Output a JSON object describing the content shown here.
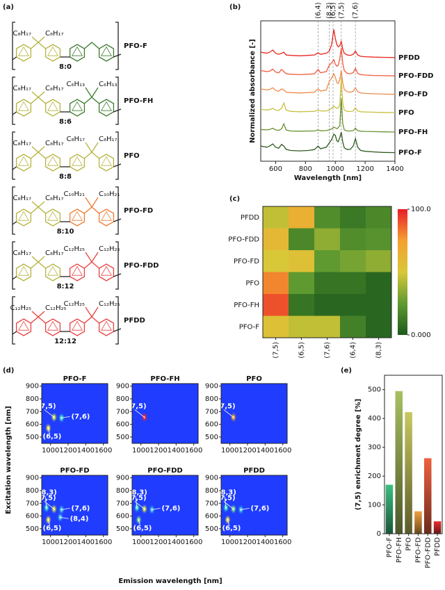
{
  "panel_labels": [
    "(a)",
    "(b)",
    "(c)",
    "(d)",
    "(e)"
  ],
  "structures": [
    {
      "left_chain": "C₈H₁₇",
      "right_chain": null,
      "name": "PFO-F",
      "ratio": "8:0",
      "left_color": "#b5b23c",
      "right_color": "#3d7a2e"
    },
    {
      "left_chain": "C₈H₁₇",
      "right_chain": "C₆H₁₃",
      "name": "PFO-FH",
      "ratio": "8:6",
      "left_color": "#b5b23c",
      "right_color": "#3d7a2e"
    },
    {
      "left_chain": "C₈H₁₇",
      "right_chain": "C₈H₁₇",
      "name": "PFO",
      "ratio": "8:8",
      "left_color": "#b5b23c",
      "right_color": "#b5b23c"
    },
    {
      "left_chain": "C₈H₁₇",
      "right_chain": "C₁₀H₂₁",
      "name": "PFO-FD",
      "ratio": "8:10",
      "left_color": "#b5b23c",
      "right_color": "#f07a30"
    },
    {
      "left_chain": "C₈H₁₇",
      "right_chain": "C₁₂H₂₅",
      "name": "PFO-FDD",
      "ratio": "8:12",
      "left_color": "#b5b23c",
      "right_color": "#e84040"
    },
    {
      "left_chain": "C₁₂H₂₅",
      "right_chain": "C₁₂H₂₅",
      "name": "PFDD",
      "ratio": "12:12",
      "left_color": "#e84040",
      "right_color": "#e84040"
    }
  ],
  "chart_data": [
    {
      "type": "line",
      "x_label": "Wavelength [nm]",
      "y_label": "Normalized absorbance [-]",
      "x": [
        500,
        540,
        560,
        580,
        600,
        620,
        640,
        655,
        670,
        700,
        760,
        820,
        860,
        885,
        900,
        940,
        960,
        975,
        990,
        1000,
        1010,
        1020,
        1030,
        1040,
        1050,
        1060,
        1080,
        1100,
        1120,
        1135,
        1150,
        1170,
        1200,
        1260,
        1320,
        1400
      ],
      "series": [
        {
          "name": "PFDD",
          "color": "#e8241c",
          "values": [
            5.55,
            5.5,
            5.55,
            5.65,
            5.5,
            5.45,
            5.5,
            5.55,
            5.42,
            5.4,
            5.38,
            5.4,
            5.42,
            5.52,
            5.45,
            5.5,
            5.6,
            5.9,
            6.6,
            6.2,
            5.9,
            5.8,
            5.85,
            6.05,
            5.7,
            5.5,
            5.42,
            5.4,
            5.45,
            5.6,
            5.42,
            5.36,
            5.34,
            5.32,
            5.31,
            5.3
          ]
        },
        {
          "name": "PFO-FDD",
          "color": "#f05a3a",
          "values": [
            4.7,
            4.65,
            4.67,
            4.77,
            4.63,
            4.59,
            4.75,
            4.65,
            4.55,
            4.53,
            4.51,
            4.53,
            4.55,
            4.75,
            4.6,
            4.65,
            4.95,
            5.05,
            5.2,
            5.0,
            4.9,
            4.95,
            5.25,
            5.75,
            5.05,
            4.7,
            4.57,
            4.55,
            4.6,
            4.8,
            4.57,
            4.51,
            4.49,
            4.47,
            4.46,
            4.45
          ]
        },
        {
          "name": "PFO-FD",
          "color": "#f08a4a",
          "values": [
            3.85,
            3.8,
            3.82,
            3.9,
            3.78,
            3.74,
            3.85,
            3.8,
            3.7,
            3.68,
            3.66,
            3.68,
            3.7,
            3.85,
            3.75,
            3.8,
            4.2,
            4.35,
            4.55,
            4.4,
            4.15,
            4.1,
            4.3,
            4.7,
            4.15,
            3.82,
            3.72,
            3.7,
            3.74,
            3.9,
            3.72,
            3.66,
            3.64,
            3.62,
            3.61,
            3.6
          ]
        },
        {
          "name": "PFO",
          "color": "#c8c040",
          "values": [
            2.9,
            2.87,
            2.89,
            2.95,
            2.87,
            2.85,
            2.95,
            3.2,
            2.87,
            2.81,
            2.79,
            2.8,
            2.81,
            2.87,
            2.83,
            2.83,
            2.87,
            2.95,
            3.05,
            3.0,
            2.95,
            2.97,
            3.1,
            4.35,
            3.2,
            2.87,
            2.81,
            2.8,
            2.83,
            2.97,
            2.83,
            2.79,
            2.78,
            2.77,
            2.76,
            2.75
          ]
        },
        {
          "name": "PFO-FH",
          "color": "#6a9030",
          "values": [
            1.97,
            1.95,
            1.97,
            2.03,
            1.95,
            1.93,
            2.0,
            2.23,
            1.95,
            1.9,
            1.89,
            1.9,
            1.9,
            1.95,
            1.91,
            1.92,
            1.95,
            2.0,
            2.07,
            2.05,
            2.01,
            2.05,
            2.15,
            3.4,
            2.25,
            1.95,
            1.9,
            1.9,
            1.92,
            2.03,
            1.92,
            1.89,
            1.88,
            1.87,
            1.86,
            1.85
          ]
        },
        {
          "name": "PFO-F",
          "color": "#2e5a20",
          "values": [
            1.2,
            1.15,
            1.2,
            1.3,
            1.15,
            1.1,
            1.28,
            1.2,
            1.05,
            1.0,
            0.98,
            1.0,
            1.04,
            1.2,
            1.08,
            1.15,
            1.35,
            1.5,
            1.75,
            1.7,
            1.45,
            1.4,
            1.6,
            1.85,
            1.4,
            1.12,
            1.04,
            1.05,
            1.2,
            1.55,
            1.15,
            1.0,
            0.96,
            0.93,
            0.91,
            0.9
          ]
        }
      ],
      "annotations": [
        {
          "label": "(6,4)",
          "x": 885
        },
        {
          "label": "(8,3)",
          "x": 960
        },
        {
          "label": "(6,5)",
          "x": 985
        },
        {
          "label": "(7,5)",
          "x": 1040
        },
        {
          "label": "(7,6)",
          "x": 1135
        }
      ],
      "xlim": [
        500,
        1400
      ],
      "xticks": [
        600,
        800,
        1000,
        1200,
        1400
      ],
      "ylim": [
        0.5,
        7
      ]
    },
    {
      "type": "heatmap",
      "rows": [
        "PFDD",
        "PFO-FDD",
        "PFO-FD",
        "PFO",
        "PFO-FH",
        "PFO-F"
      ],
      "columns": [
        "(7,5)",
        "(6,5)",
        "(7,6)",
        "(6,4)",
        "(8,3)"
      ],
      "values": [
        [
          45,
          65,
          20,
          12,
          18
        ],
        [
          60,
          18,
          35,
          20,
          22
        ],
        [
          50,
          55,
          25,
          30,
          35
        ],
        [
          80,
          25,
          10,
          10,
          5
        ],
        [
          90,
          10,
          5,
          5,
          5
        ],
        [
          55,
          45,
          45,
          15,
          5
        ]
      ],
      "zlim": [
        0,
        100
      ],
      "zticks": [
        {
          "value": 100,
          "label": "100.0"
        },
        {
          "value": 0,
          "label": "0.000"
        }
      ],
      "colorscale": [
        "#1c5a1c",
        "#5f9a30",
        "#d8c838",
        "#f5a030",
        "#e81c28"
      ]
    },
    {
      "type": "ple-map",
      "x_label": "Emission wavelength [nm]",
      "y_label": "Excitation wavelength [nm]",
      "background": "#1f3cff",
      "xlim": [
        900,
        1650
      ],
      "xticks": [
        1000,
        1200,
        1400,
        1600
      ],
      "ylim": [
        450,
        920
      ],
      "yticks": [
        500,
        600,
        700,
        800,
        900
      ],
      "panels": [
        {
          "title": "PFO-F",
          "peaks": [
            {
              "label": "(7,5)",
              "x": 1040,
              "y": 655,
              "color": "#c8e040"
            },
            {
              "label": "(7,6)",
              "x": 1125,
              "y": 650,
              "color": "#40e0c0"
            },
            {
              "label": "(6,5)",
              "x": 975,
              "y": 570,
              "color": "#e8e040"
            }
          ]
        },
        {
          "title": "PFO-FH",
          "peaks": [
            {
              "label": "(7,5)",
              "x": 1040,
              "y": 655,
              "color": "#ff2020"
            }
          ]
        },
        {
          "title": "PFO",
          "peaks": [
            {
              "label": "(7,5)",
              "x": 1040,
              "y": 655,
              "color": "#f0a020"
            }
          ]
        },
        {
          "title": "PFO-FD",
          "peaks": [
            {
              "label": "(8,3)",
              "x": 955,
              "y": 665,
              "color": "#40e0c0"
            },
            {
              "label": "(7,5)",
              "x": 1040,
              "y": 655,
              "color": "#c8e040"
            },
            {
              "label": "(7,6)",
              "x": 1125,
              "y": 650,
              "color": "#40c0e0"
            },
            {
              "label": "(8,4)",
              "x": 1110,
              "y": 590,
              "color": "#40c0e0"
            },
            {
              "label": "(6,5)",
              "x": 975,
              "y": 570,
              "color": "#e8e040"
            }
          ]
        },
        {
          "title": "PFO-FDD",
          "peaks": [
            {
              "label": "(8,3)",
              "x": 955,
              "y": 665,
              "color": "#40e0c0"
            },
            {
              "label": "(7,5)",
              "x": 1040,
              "y": 655,
              "color": "#c8e040"
            },
            {
              "label": "(7,6)",
              "x": 1125,
              "y": 650,
              "color": "#40c0e0"
            },
            {
              "label": "(6,5)",
              "x": 975,
              "y": 570,
              "color": "#80e080"
            }
          ]
        },
        {
          "title": "PFDD",
          "peaks": [
            {
              "label": "(8,3)",
              "x": 955,
              "y": 665,
              "color": "#40e0c0"
            },
            {
              "label": "(7,5)",
              "x": 1040,
              "y": 655,
              "color": "#80e080"
            },
            {
              "label": "(7,6)",
              "x": 1125,
              "y": 650,
              "color": "#40c0e0"
            },
            {
              "label": "(6,5)",
              "x": 975,
              "y": 570,
              "color": "#e8e040"
            }
          ]
        }
      ]
    },
    {
      "type": "bar",
      "y_label": "(7,5) enrichment degree [%]",
      "categories": [
        "PFO-F",
        "PFO-FH",
        "PFO",
        "PFO-FD",
        "PFO-FDD",
        "PFDD"
      ],
      "values": [
        170,
        495,
        422,
        78,
        262,
        43
      ],
      "colors": [
        "#3cc080",
        "#a8c060",
        "#c8c860",
        "#f0a040",
        "#f06040",
        "#e83030"
      ],
      "ylim": [
        0,
        550
      ],
      "yticks": [
        0,
        100,
        200,
        300,
        400,
        500
      ]
    }
  ]
}
